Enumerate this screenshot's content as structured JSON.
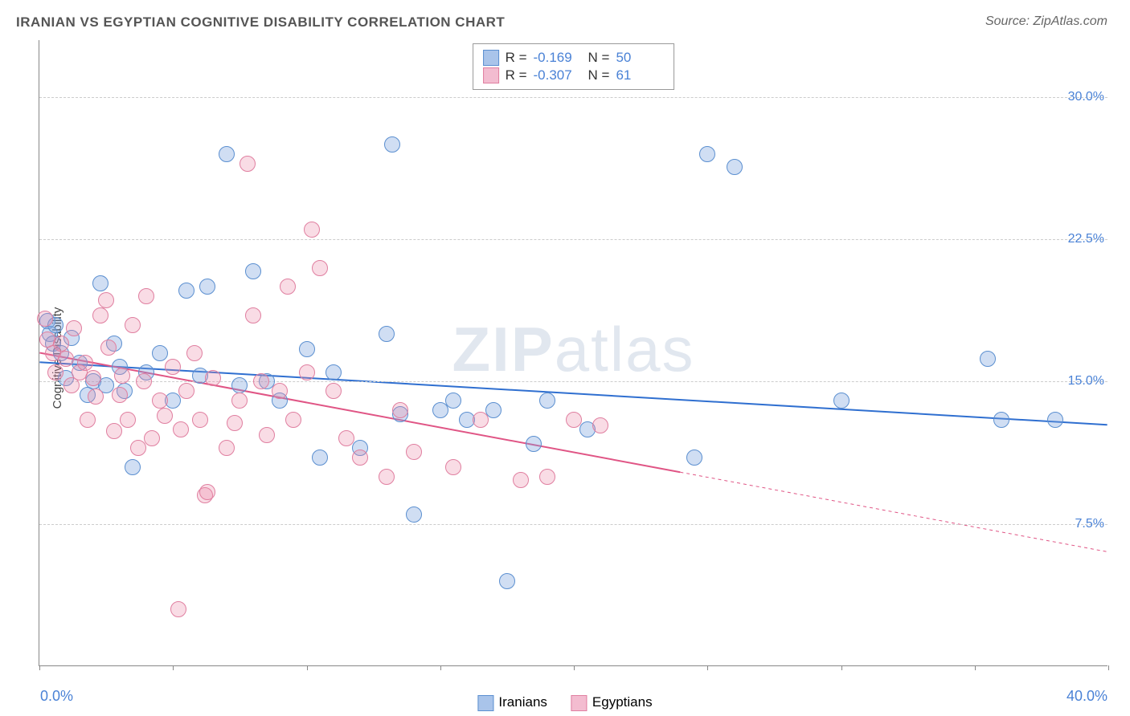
{
  "title": "IRANIAN VS EGYPTIAN COGNITIVE DISABILITY CORRELATION CHART",
  "source": "Source: ZipAtlas.com",
  "ylabel": "Cognitive Disability",
  "watermark_bold": "ZIP",
  "watermark_light": "atlas",
  "chart": {
    "type": "scatter",
    "xlim": [
      0,
      40
    ],
    "ylim": [
      0,
      33
    ],
    "xtick_positions": [
      0,
      5,
      10,
      15,
      20,
      25,
      30,
      35,
      40
    ],
    "ytick_labels": [
      "7.5%",
      "15.0%",
      "22.5%",
      "30.0%"
    ],
    "ytick_values": [
      7.5,
      15.0,
      22.5,
      30.0
    ],
    "x_min_label": "0.0%",
    "x_max_label": "40.0%",
    "background_color": "#ffffff",
    "grid_color": "#cccccc",
    "axis_color": "#888888",
    "tick_label_color": "#4a82d6",
    "marker_radius": 10,
    "marker_border_width": 1.5
  },
  "series": [
    {
      "name": "Iranians",
      "fill": "rgba(120,160,220,0.35)",
      "stroke": "#5b8fd0",
      "legend_swatch_fill": "#a9c4ea",
      "legend_swatch_border": "#5b8fd0",
      "line_color": "#2f6fd0",
      "line_width": 2,
      "trend": {
        "x1": 0,
        "y1": 16.0,
        "x2": 40,
        "y2": 12.7,
        "dashed_from_x": null
      },
      "R": "-0.169",
      "N": "50",
      "points": [
        [
          0.3,
          18.2
        ],
        [
          0.4,
          17.5
        ],
        [
          0.5,
          17.0
        ],
        [
          0.6,
          18.0
        ],
        [
          0.8,
          16.5
        ],
        [
          1.0,
          15.2
        ],
        [
          1.2,
          17.3
        ],
        [
          1.5,
          16.0
        ],
        [
          1.8,
          14.3
        ],
        [
          2.0,
          15.0
        ],
        [
          2.3,
          20.2
        ],
        [
          2.5,
          14.8
        ],
        [
          2.8,
          17.0
        ],
        [
          3.0,
          15.8
        ],
        [
          3.2,
          14.5
        ],
        [
          3.5,
          10.5
        ],
        [
          4.0,
          15.5
        ],
        [
          4.5,
          16.5
        ],
        [
          5.0,
          14.0
        ],
        [
          5.5,
          19.8
        ],
        [
          6.0,
          15.3
        ],
        [
          6.3,
          20.0
        ],
        [
          7.0,
          27.0
        ],
        [
          7.5,
          14.8
        ],
        [
          8.0,
          20.8
        ],
        [
          8.5,
          15.0
        ],
        [
          9.0,
          14.0
        ],
        [
          10.0,
          16.7
        ],
        [
          10.5,
          11.0
        ],
        [
          11.0,
          15.5
        ],
        [
          12.0,
          11.5
        ],
        [
          13.0,
          17.5
        ],
        [
          13.2,
          27.5
        ],
        [
          13.5,
          13.3
        ],
        [
          14.0,
          8.0
        ],
        [
          15.0,
          13.5
        ],
        [
          15.5,
          14.0
        ],
        [
          16.0,
          13.0
        ],
        [
          17.0,
          13.5
        ],
        [
          17.5,
          4.5
        ],
        [
          18.5,
          11.7
        ],
        [
          19.0,
          14.0
        ],
        [
          20.5,
          12.5
        ],
        [
          24.5,
          11.0
        ],
        [
          25.0,
          27.0
        ],
        [
          26.0,
          26.3
        ],
        [
          30.0,
          14.0
        ],
        [
          35.5,
          16.2
        ],
        [
          36.0,
          13.0
        ],
        [
          38.0,
          13.0
        ]
      ]
    },
    {
      "name": "Egyptians",
      "fill": "rgba(235,140,170,0.30)",
      "stroke": "#e07fa0",
      "legend_swatch_fill": "#f3bcd0",
      "legend_swatch_border": "#e07fa0",
      "line_color": "#e05585",
      "line_width": 2,
      "trend": {
        "x1": 0,
        "y1": 16.5,
        "x2": 40,
        "y2": 6.0,
        "dashed_from_x": 24
      },
      "R": "-0.307",
      "N": "61",
      "points": [
        [
          0.2,
          18.3
        ],
        [
          0.3,
          17.2
        ],
        [
          0.5,
          16.5
        ],
        [
          0.6,
          15.5
        ],
        [
          0.8,
          17.0
        ],
        [
          1.0,
          16.2
        ],
        [
          1.2,
          14.8
        ],
        [
          1.3,
          17.8
        ],
        [
          1.5,
          15.5
        ],
        [
          1.7,
          16.0
        ],
        [
          1.8,
          13.0
        ],
        [
          2.0,
          15.2
        ],
        [
          2.1,
          14.2
        ],
        [
          2.3,
          18.5
        ],
        [
          2.5,
          19.3
        ],
        [
          2.6,
          16.8
        ],
        [
          2.8,
          12.4
        ],
        [
          3.0,
          14.3
        ],
        [
          3.1,
          15.3
        ],
        [
          3.3,
          13.0
        ],
        [
          3.5,
          18.0
        ],
        [
          3.7,
          11.5
        ],
        [
          3.9,
          15.0
        ],
        [
          4.0,
          19.5
        ],
        [
          4.2,
          12.0
        ],
        [
          4.5,
          14.0
        ],
        [
          4.7,
          13.2
        ],
        [
          5.0,
          15.8
        ],
        [
          5.2,
          3.0
        ],
        [
          5.3,
          12.5
        ],
        [
          5.5,
          14.5
        ],
        [
          5.8,
          16.5
        ],
        [
          6.0,
          13.0
        ],
        [
          6.2,
          9.0
        ],
        [
          6.3,
          9.2
        ],
        [
          6.5,
          15.2
        ],
        [
          7.0,
          11.5
        ],
        [
          7.3,
          12.8
        ],
        [
          7.5,
          14.0
        ],
        [
          7.8,
          26.5
        ],
        [
          8.0,
          18.5
        ],
        [
          8.3,
          15.0
        ],
        [
          8.5,
          12.2
        ],
        [
          9.0,
          14.5
        ],
        [
          9.3,
          20.0
        ],
        [
          9.5,
          13.0
        ],
        [
          10.0,
          15.5
        ],
        [
          10.2,
          23.0
        ],
        [
          10.5,
          21.0
        ],
        [
          11.0,
          14.5
        ],
        [
          11.5,
          12.0
        ],
        [
          12.0,
          11.0
        ],
        [
          13.0,
          10.0
        ],
        [
          13.5,
          13.5
        ],
        [
          14.0,
          11.3
        ],
        [
          15.5,
          10.5
        ],
        [
          16.5,
          13.0
        ],
        [
          18.0,
          9.8
        ],
        [
          19.0,
          10.0
        ],
        [
          20.0,
          13.0
        ],
        [
          21.0,
          12.7
        ]
      ]
    }
  ],
  "legend_top_labels": {
    "R": "R =",
    "N": "N ="
  },
  "legend_bottom": [
    "Iranians",
    "Egyptians"
  ]
}
